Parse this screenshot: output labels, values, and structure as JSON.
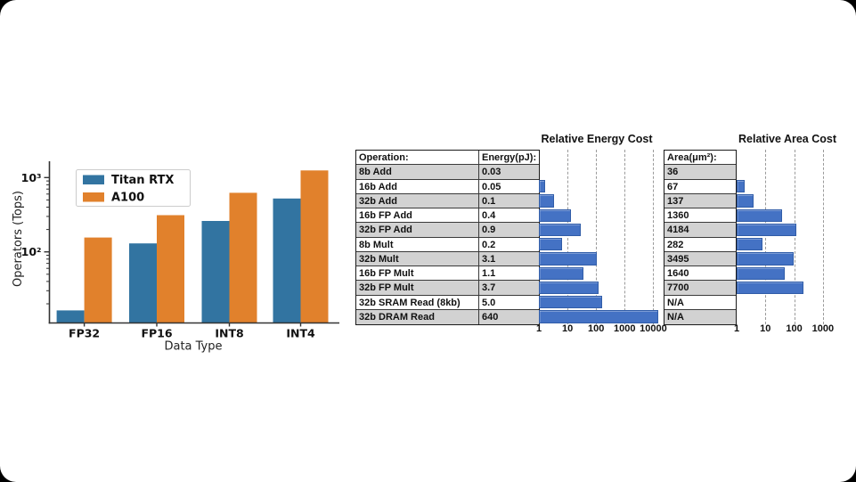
{
  "left_chart": {
    "ylabel": "Operators (Tops)",
    "xlabel": "Data Type",
    "categories": [
      "FP32",
      "FP16",
      "INT8",
      "INT4"
    ],
    "series": [
      {
        "name": "Titan RTX",
        "color": "#3274a1",
        "values": [
          16.3,
          130,
          261,
          522
        ]
      },
      {
        "name": "A100",
        "color": "#e1812c",
        "values": [
          156,
          312,
          624,
          1248
        ]
      }
    ],
    "ytick_labels": [
      {
        "label": "10³",
        "value": 1000
      },
      {
        "label": "10²",
        "value": 100
      }
    ]
  },
  "cost_figure": {
    "energy_title": "Relative Energy Cost",
    "area_title": "Relative Area Cost",
    "op_header": "Operation:",
    "energy_header": "Energy(pJ):",
    "area_header": "Area(μm²):",
    "energy_axis_ticks": [
      "1",
      "10",
      "100",
      "1000",
      "10000"
    ],
    "area_axis_ticks": [
      "1",
      "10",
      "100",
      "1000"
    ],
    "bar_color": "#4472c4",
    "rows": [
      {
        "op": "8b Add",
        "energy": "0.03",
        "energy_val": 0.03,
        "area": "36",
        "area_val": 36
      },
      {
        "op": "16b Add",
        "energy": "0.05",
        "energy_val": 0.05,
        "area": "67",
        "area_val": 67
      },
      {
        "op": "32b Add",
        "energy": "0.1",
        "energy_val": 0.1,
        "area": "137",
        "area_val": 137
      },
      {
        "op": "16b FP Add",
        "energy": "0.4",
        "energy_val": 0.4,
        "area": "1360",
        "area_val": 1360
      },
      {
        "op": "32b FP Add",
        "energy": "0.9",
        "energy_val": 0.9,
        "area": "4184",
        "area_val": 4184
      },
      {
        "op": "8b Mult",
        "energy": "0.2",
        "energy_val": 0.2,
        "area": "282",
        "area_val": 282
      },
      {
        "op": "32b Mult",
        "energy": "3.1",
        "energy_val": 3.1,
        "area": "3495",
        "area_val": 3495
      },
      {
        "op": "16b FP Mult",
        "energy": "1.1",
        "energy_val": 1.1,
        "area": "1640",
        "area_val": 1640
      },
      {
        "op": "32b FP Mult",
        "energy": "3.7",
        "energy_val": 3.7,
        "area": "7700",
        "area_val": 7700
      },
      {
        "op": "32b SRAM Read (8kb)",
        "energy": "5.0",
        "energy_val": 5.0,
        "area": "N/A",
        "area_val": null
      },
      {
        "op": "32b DRAM Read",
        "energy": "640",
        "energy_val": 640,
        "area": "N/A",
        "area_val": null
      }
    ]
  },
  "chart_data": [
    {
      "type": "bar",
      "title": "",
      "xlabel": "Data Type",
      "ylabel": "Operators (Tops)",
      "yscale": "log",
      "ylim": [
        11,
        1700
      ],
      "grid": false,
      "legend_position": "upper left",
      "categories": [
        "FP32",
        "FP16",
        "INT8",
        "INT4"
      ],
      "series": [
        {
          "name": "Titan RTX",
          "values": [
            16.3,
            130,
            261,
            522
          ]
        },
        {
          "name": "A100",
          "values": [
            156,
            312,
            624,
            1248
          ]
        }
      ]
    },
    {
      "type": "bar",
      "orientation": "horizontal",
      "title": "Relative Energy Cost",
      "xscale": "log",
      "xlim": [
        1,
        10000
      ],
      "grid": true,
      "categories": [
        "8b Add",
        "16b Add",
        "32b Add",
        "16b FP Add",
        "32b FP Add",
        "8b Mult",
        "32b Mult",
        "16b FP Mult",
        "32b FP Mult",
        "32b SRAM Read (8kb)",
        "32b DRAM Read"
      ],
      "energy_pJ": [
        0.03,
        0.05,
        0.1,
        0.4,
        0.9,
        0.2,
        3.1,
        1.1,
        3.7,
        5.0,
        640
      ],
      "values": [
        1,
        1.7,
        3.3,
        13.3,
        30,
        6.7,
        103,
        36.7,
        123,
        167,
        21333
      ]
    },
    {
      "type": "bar",
      "orientation": "horizontal",
      "title": "Relative Area Cost",
      "xscale": "log",
      "xlim": [
        1,
        1000
      ],
      "grid": true,
      "categories": [
        "8b Add",
        "16b Add",
        "32b Add",
        "16b FP Add",
        "32b FP Add",
        "8b Mult",
        "32b Mult",
        "16b FP Mult",
        "32b FP Mult",
        "32b SRAM Read (8kb)",
        "32b DRAM Read"
      ],
      "area_um2": [
        36,
        67,
        137,
        1360,
        4184,
        282,
        3495,
        1640,
        7700,
        null,
        null
      ],
      "values": [
        1,
        1.9,
        3.8,
        37.8,
        116,
        7.8,
        97,
        45.6,
        214,
        null,
        null
      ]
    }
  ]
}
